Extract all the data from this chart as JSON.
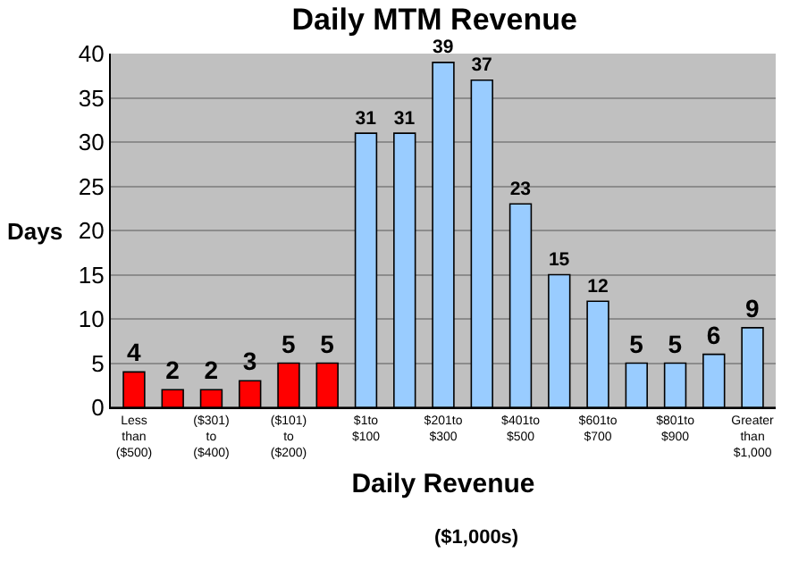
{
  "chart_data": {
    "type": "bar",
    "title": "Daily MTM Revenue",
    "xlabel": "Daily Revenue",
    "ylabel": "Days",
    "annotations": [
      "($1,000s)"
    ],
    "categories": [
      "Less\nthan\n($500)",
      null,
      "($301)\nto\n($400)",
      null,
      "($101)\nto\n($200)",
      null,
      "$1to\n$100",
      null,
      "$201to\n$300",
      null,
      "$401to\n$500",
      null,
      "$601to\n$700",
      null,
      "$801to\n$900",
      null,
      "Greater\nthan\n$1,000"
    ],
    "values": [
      4,
      2,
      2,
      3,
      5,
      5,
      31,
      31,
      39,
      37,
      23,
      15,
      12,
      5,
      5,
      6,
      9
    ],
    "colors": [
      "#ff0000",
      "#ff0000",
      "#ff0000",
      "#ff0000",
      "#ff0000",
      "#ff0000",
      "#99ccff",
      "#99ccff",
      "#99ccff",
      "#99ccff",
      "#99ccff",
      "#99ccff",
      "#99ccff",
      "#99ccff",
      "#99ccff",
      "#99ccff",
      "#99ccff"
    ],
    "ylim": [
      0,
      40
    ],
    "yticks": [
      0,
      5,
      10,
      15,
      20,
      25,
      30,
      35,
      40
    ],
    "grid": "y",
    "data_labels": true
  }
}
